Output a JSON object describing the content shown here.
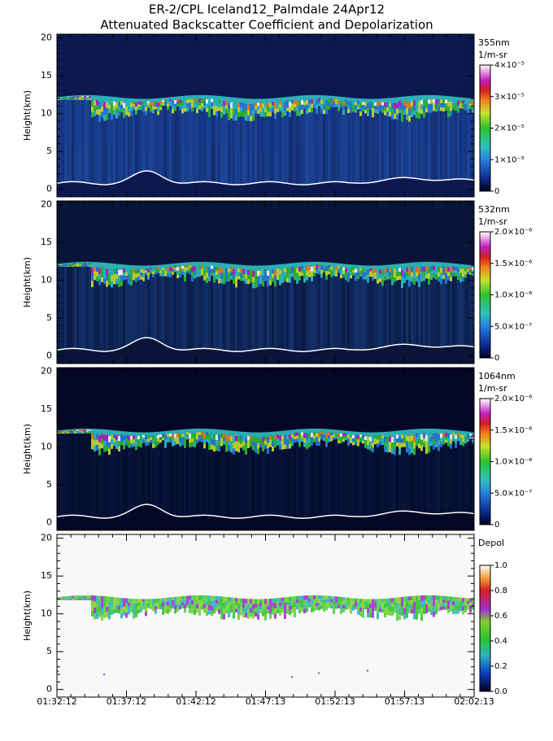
{
  "title": "ER-2/CPL Iceland12_Palmdale 24Apr12",
  "subtitle": "Attenuated Backscatter Coefficient and Depolarization",
  "chart_data": [
    {
      "type": "heatmap",
      "ylabel": "Height(km)",
      "ylim": [
        -1,
        20.5
      ],
      "yticks": [
        0,
        5,
        10,
        15,
        20
      ],
      "colorbar": {
        "title": "355nm",
        "units": "1/m-sr",
        "lim": [
          0,
          4e-05
        ],
        "ticks": [
          0,
          {
            "value": 1e-05,
            "label": "1×10⁻⁵"
          },
          {
            "value": 2e-05,
            "label": "2×10⁻⁵"
          },
          {
            "value": 3e-05,
            "label": "3×10⁻⁵"
          },
          {
            "value": 4e-05,
            "label": "4×10⁻⁵"
          }
        ]
      }
    },
    {
      "type": "heatmap",
      "ylabel": "Height(km)",
      "ylim": [
        -1,
        20.5
      ],
      "yticks": [
        0,
        5,
        10,
        15,
        20
      ],
      "colorbar": {
        "title": "532nm",
        "units": "1/m-sr",
        "lim": [
          0,
          2e-06
        ],
        "ticks": [
          0,
          {
            "value": 5e-07,
            "label": "5.0×10⁻⁷"
          },
          {
            "value": 1e-06,
            "label": "1.0×10⁻⁶"
          },
          {
            "value": 1.5e-06,
            "label": "1.5×10⁻⁶"
          },
          {
            "value": 2e-06,
            "label": "2.0×10⁻⁶"
          }
        ]
      }
    },
    {
      "type": "heatmap",
      "ylabel": "Height(km)",
      "ylim": [
        -1,
        20.5
      ],
      "yticks": [
        0,
        5,
        10,
        15,
        20
      ],
      "colorbar": {
        "title": "1064nm",
        "units": "1/m-sr",
        "lim": [
          0,
          2e-06
        ],
        "ticks": [
          0,
          {
            "value": 5e-07,
            "label": "5.0×10⁻⁷"
          },
          {
            "value": 1e-06,
            "label": "1.0×10⁻⁶"
          },
          {
            "value": 1.5e-06,
            "label": "1.5×10⁻⁶"
          },
          {
            "value": 2e-06,
            "label": "2.0×10⁻⁶"
          }
        ]
      }
    },
    {
      "type": "depol",
      "ylabel": "Height(km)",
      "ylim": [
        -1,
        20.5
      ],
      "yticks": [
        0,
        5,
        10,
        15,
        20
      ],
      "colorbar": {
        "title": "Depol",
        "lim": [
          0,
          1
        ],
        "ticks": [
          {
            "value": 0,
            "label": "0.0"
          },
          0.2,
          0.4,
          0.6,
          0.8,
          {
            "value": 1,
            "label": "1.0"
          }
        ]
      },
      "xticks": [
        "01:32:12",
        "01:37:12",
        "01:42:12",
        "01:47:13",
        "01:52:13",
        "01:57:13",
        "02:02:13"
      ]
    }
  ]
}
